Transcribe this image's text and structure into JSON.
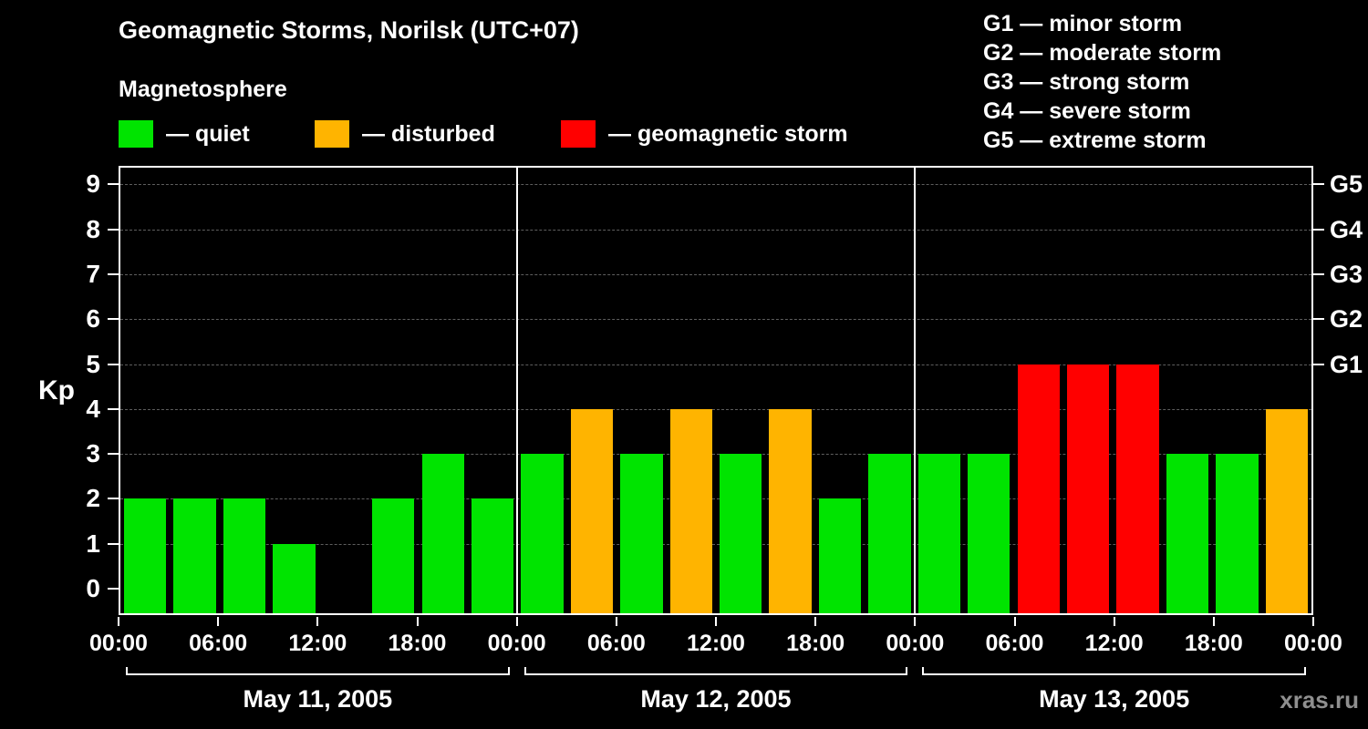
{
  "title": "Geomagnetic Storms, Norilsk (UTC+07)",
  "subtitle": "Magnetosphere",
  "kp_legend": [
    {
      "swatch_color": "#00e400",
      "label": "— quiet"
    },
    {
      "swatch_color": "#ffb400",
      "label": "— disturbed"
    },
    {
      "swatch_color": "#ff0000",
      "label": "— geomagnetic storm"
    }
  ],
  "storm_scale_legend": [
    {
      "label": "G1 — minor storm"
    },
    {
      "label": "G2 — moderate storm"
    },
    {
      "label": "G3 — strong storm"
    },
    {
      "label": "G4 — severe storm"
    },
    {
      "label": "G5 — extreme storm"
    }
  ],
  "watermark": "xras.ru",
  "chart_data": {
    "type": "bar",
    "title": "Geomagnetic Storms, Norilsk (UTC+07)",
    "ylabel": "Kp",
    "ylim": [
      0,
      9
    ],
    "yticks": [
      0,
      1,
      2,
      3,
      4,
      5,
      6,
      7,
      8,
      9
    ],
    "right_axis": [
      {
        "label": "G1",
        "kp": 5
      },
      {
        "label": "G2",
        "kp": 6
      },
      {
        "label": "G3",
        "kp": 7
      },
      {
        "label": "G4",
        "kp": 8
      },
      {
        "label": "G5",
        "kp": 9
      }
    ],
    "x_tick_labels": [
      "00:00",
      "06:00",
      "12:00",
      "18:00",
      "00:00",
      "06:00",
      "12:00",
      "18:00",
      "00:00",
      "06:00",
      "12:00",
      "18:00",
      "00:00"
    ],
    "interval_hours": 3,
    "days": [
      {
        "date": "May 11, 2005",
        "kp_values": [
          2,
          2,
          2,
          1,
          0,
          2,
          3,
          2
        ]
      },
      {
        "date": "May 12, 2005",
        "kp_values": [
          3,
          4,
          3,
          4,
          3,
          4,
          2,
          3
        ]
      },
      {
        "date": "May 13, 2005",
        "kp_values": [
          3,
          3,
          5,
          5,
          5,
          3,
          3,
          4
        ]
      }
    ],
    "colors": {
      "quiet": "#00e400",
      "disturbed": "#ffb400",
      "storm": "#ff0000"
    },
    "color_thresholds": {
      "disturbed_at_kp": 4,
      "storm_at_kp": 5
    },
    "grid": "dashed horizontal lines at each Kp level",
    "legend_position": "top-left",
    "day_separators": "vertical white lines at day boundaries"
  }
}
